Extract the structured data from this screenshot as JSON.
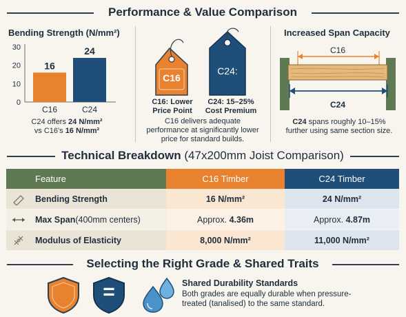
{
  "header": {
    "title": "Performance & Value Comparison"
  },
  "chart_panel": {
    "title": "Bending Strength (N/mm²)",
    "note_prefix": "C24 offers ",
    "note_c24_value": "24 N/mm²",
    "note_middle": "vs C16's ",
    "note_c16_value": "16 N/mm²"
  },
  "chart_data": {
    "type": "bar",
    "title": "Bending Strength (N/mm²)",
    "categories": [
      "C16",
      "C24"
    ],
    "values": [
      16,
      24
    ],
    "data_labels": [
      "16",
      "24"
    ],
    "colors": [
      "#e8822f",
      "#1f4e79"
    ],
    "ylim": [
      0,
      30
    ],
    "yticks": [
      "30",
      "20",
      "10",
      "0"
    ],
    "ytick_values": [
      30,
      20,
      10,
      0
    ],
    "grid": false
  },
  "price_panel": {
    "c16_tag": "C16",
    "c24_tag": "C24:",
    "c16_caption_line1": "C16: Lower",
    "c16_caption_line2": "Price Point",
    "c24_caption_line1": "C24: 15–25%",
    "c24_caption_line2": "Cost Premium",
    "desc_line1": "C16 delivers adequate",
    "desc_line2": "performance at significantly lower",
    "desc_line3": "price for standard builds."
  },
  "span_panel": {
    "title": "Increased Span Capacity",
    "c16_label": "C16",
    "c24_label": "C24",
    "desc_bold": "C24",
    "desc_line1_rest": " spans roughly 10–15%",
    "desc_line2": "further using same section size."
  },
  "breakdown": {
    "title_bold": "Technical Breakdown",
    "title_rest": " (47x200mm Joist Comparison)"
  },
  "table": {
    "headers": {
      "feature": "Feature",
      "c16": "C16 Timber",
      "c24": "C24 Timber"
    },
    "rows": [
      {
        "icon": "beam-icon",
        "feature": "Bending Strength",
        "feature_sub": "",
        "c16_prefix": "",
        "c16_value": "16 N/mm²",
        "c24_prefix": "",
        "c24_value": "24 N/mm²"
      },
      {
        "icon": "span-arrows-icon",
        "feature": "Max Span",
        "feature_sub": " (400mm centers)",
        "c16_prefix": "Approx. ",
        "c16_value": "4.36m",
        "c24_prefix": "Approx. ",
        "c24_value": "4.87m"
      },
      {
        "icon": "elasticity-icon",
        "feature": "Modulus of Elasticity",
        "feature_sub": "",
        "c16_prefix": "",
        "c16_value": "8,000 N/mm²",
        "c24_prefix": "",
        "c24_value": "11,000 N/mm²"
      }
    ]
  },
  "selecting": {
    "title": "Selecting the Right Grade & Shared Traits",
    "durability_title": "Shared Durability Standards",
    "durability_line1": "Both grades are equally durable when pressure-",
    "durability_line2": "treated (tanalised) to the same standard.",
    "equals_glyph": "="
  },
  "colors": {
    "orange": "#e8822f",
    "navy": "#1f4e79",
    "green": "#5f7a52",
    "text": "#1f2d3d"
  }
}
